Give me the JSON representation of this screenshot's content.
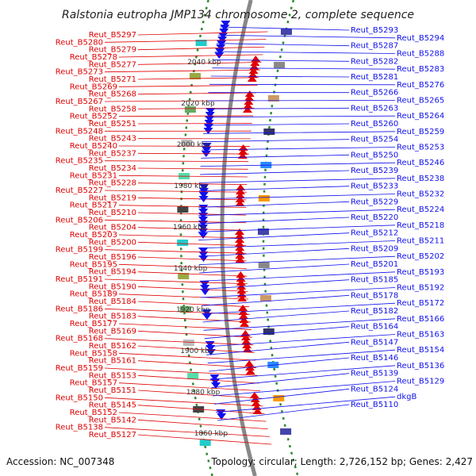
{
  "title": "Ralstonia eutropha JMP134 chromosome 2, complete sequence",
  "footer": {
    "accession": "Accession: NC_007348",
    "topology": "Topology: circular; Length: 2,726,152 bp; Genes: 2,427"
  },
  "colors": {
    "reverse": "#e00000",
    "forward": "#1010ee",
    "backbone": "#888888",
    "ticks": "#2e8b2e"
  },
  "kbp_markers": [
    "2040 kbp",
    "2020 kbp",
    "2000 kbp",
    "1980 kbp",
    "1960 kbp",
    "1940 kbp",
    "1920 kbp",
    "1900 kbp",
    "1880 kbp",
    "1860 kbp"
  ],
  "labels_left": [
    "Reut_B5297",
    "Reut_B5280",
    "Reut_B5279",
    "Reut_B5278",
    "Reut_B5277",
    "Reut_B5273",
    "Reut_B5271",
    "Reut_B5269",
    "Reut_B5268",
    "Reut_B5267",
    "Reut_B5258",
    "Reut_B5252",
    "Reut_B5251",
    "Reut_B5248",
    "Reut_B5243",
    "Reut_B5240",
    "Reut_B5237",
    "Reut_B5235",
    "Reut_B5234",
    "Reut_B5231",
    "Reut_B5228",
    "Reut_B5227",
    "Reut_B5219",
    "Reut_B5217",
    "Reut_B5210",
    "Reut_B5206",
    "Reut_B5204",
    "Reut_B5203",
    "Reut_B5200",
    "Reut_B5199",
    "Reut_B5196",
    "Reut_B5195",
    "Reut_B5194",
    "Reut_B5191",
    "Reut_B5190",
    "Reut_B5189",
    "Reut_B5184",
    "Reut_B5186",
    "Reut_B5183",
    "Reut_B5177",
    "Reut_B5169",
    "Reut_B5168",
    "Reut_B5162",
    "Reut_B5158",
    "Reut_B5161",
    "Reut_B5159",
    "Reut_B5153",
    "Reut_B5157",
    "Reut_B5151",
    "Reut_B5150",
    "Reut_B5145",
    "Reut_B5152",
    "Reut_B5142",
    "Reut_B5138",
    "Reut_B5127"
  ],
  "labels_right": [
    "Reut_B5293",
    "Reut_B5294",
    "Reut_B5287",
    "Reut_B5288",
    "Reut_B5282",
    "Reut_B5283",
    "Reut_B5281",
    "Reut_B5276",
    "Reut_B5266",
    "Reut_B5265",
    "Reut_B5263",
    "Reut_B5264",
    "Reut_B5260",
    "Reut_B5259",
    "Reut_B5254",
    "Reut_B5253",
    "Reut_B5250",
    "Reut_B5246",
    "Reut_B5239",
    "Reut_B5238",
    "Reut_B5233",
    "Reut_B5232",
    "Reut_B5229",
    "Reut_B5224",
    "Reut_B5220",
    "Reut_B5218",
    "Reut_B5212",
    "Reut_B5211",
    "Reut_B5209",
    "Reut_B5202",
    "Reut_B5201",
    "Reut_B5193",
    "Reut_B5185",
    "Reut_B5192",
    "Reut_B5178",
    "Reut_B5172",
    "Reut_B5182",
    "Reut_B5166",
    "Reut_B5164",
    "Reut_B5163",
    "Reut_B5147",
    "Reut_B5154",
    "Reut_B5146",
    "Reut_B5136",
    "Reut_B5139",
    "Reut_B5129",
    "Reut_B5124",
    "dkgB",
    "Reut_B5110"
  ]
}
